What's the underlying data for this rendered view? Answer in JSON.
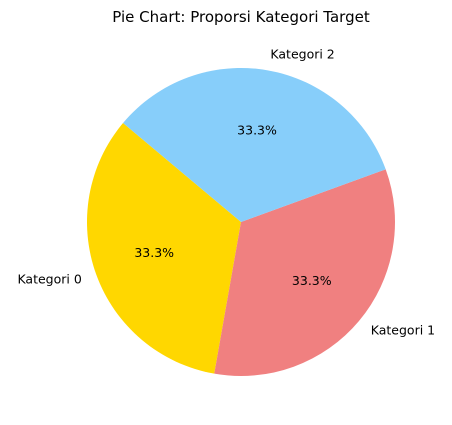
{
  "chart_data": {
    "type": "pie",
    "title": "Pie Chart: Proporsi Kategori Target",
    "start_angle_deg": 140,
    "direction": "counterclockwise",
    "slices": [
      {
        "label": "Kategori 0",
        "value": 33.3,
        "pct_label": "33.3%",
        "color": "#ffd700"
      },
      {
        "label": "Kategori 1",
        "value": 33.3,
        "pct_label": "33.3%",
        "color": "#f08080"
      },
      {
        "label": "Kategori 2",
        "value": 33.3,
        "pct_label": "33.3%",
        "color": "#87cefa"
      }
    ]
  }
}
